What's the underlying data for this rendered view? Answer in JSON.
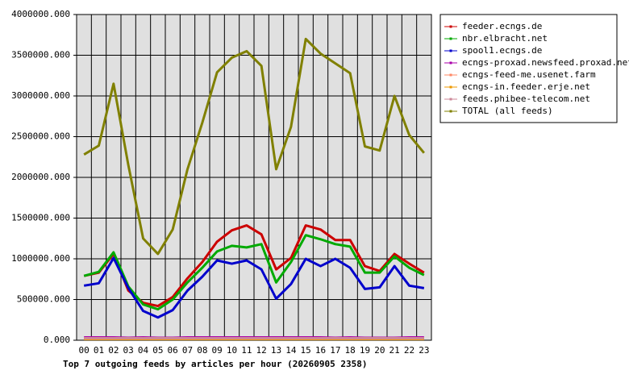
{
  "chart_data": {
    "type": "line",
    "title": "Top 7 outgoing feeds by articles per hour (20260905 2358)",
    "categories": [
      "00",
      "01",
      "02",
      "03",
      "04",
      "05",
      "06",
      "07",
      "08",
      "09",
      "10",
      "11",
      "12",
      "13",
      "14",
      "15",
      "16",
      "17",
      "18",
      "19",
      "20",
      "21",
      "22",
      "23"
    ],
    "ylim": [
      0,
      4000000
    ],
    "yticks": [
      {
        "value": 0,
        "label": "0.000"
      },
      {
        "value": 500000,
        "label": "500000.000"
      },
      {
        "value": 1000000,
        "label": "1000000.000"
      },
      {
        "value": 1500000,
        "label": "1500000.000"
      },
      {
        "value": 2000000,
        "label": "2000000.000"
      },
      {
        "value": 2500000,
        "label": "2500000.000"
      },
      {
        "value": 3000000,
        "label": "3000000.000"
      },
      {
        "value": 3500000,
        "label": "3500000.000"
      },
      {
        "value": 4000000,
        "label": "4000000.000"
      }
    ],
    "grid": true,
    "legend": "right",
    "series": [
      {
        "name": "feeder.ecngs.de",
        "color": "#cc0000",
        "values": [
          790000,
          830000,
          1060000,
          610000,
          460000,
          420000,
          530000,
          760000,
          960000,
          1210000,
          1350000,
          1410000,
          1300000,
          870000,
          1010000,
          1410000,
          1360000,
          1230000,
          1230000,
          910000,
          850000,
          1060000,
          940000,
          830000
        ]
      },
      {
        "name": "nbr.elbracht.net",
        "color": "#00aa00",
        "values": [
          790000,
          840000,
          1080000,
          660000,
          440000,
          380000,
          500000,
          710000,
          890000,
          1090000,
          1160000,
          1140000,
          1180000,
          710000,
          960000,
          1290000,
          1240000,
          1180000,
          1150000,
          830000,
          830000,
          1030000,
          890000,
          800000
        ]
      },
      {
        "name": "spool1.ecngs.de",
        "color": "#0000cc",
        "values": [
          670000,
          700000,
          1010000,
          640000,
          360000,
          280000,
          370000,
          610000,
          780000,
          980000,
          940000,
          980000,
          870000,
          510000,
          690000,
          1000000,
          910000,
          1000000,
          890000,
          630000,
          650000,
          910000,
          670000,
          640000
        ]
      },
      {
        "name": "ecngs-proxad.newsfeed.proxad.net",
        "color": "#aa00aa",
        "values": [
          35000,
          35000,
          35000,
          30000,
          35000,
          30000,
          30000,
          35000,
          35000,
          35000,
          35000,
          35000,
          35000,
          35000,
          35000,
          35000,
          35000,
          30000,
          35000,
          30000,
          30000,
          30000,
          35000,
          35000
        ]
      },
      {
        "name": "ecngs-feed-me.usenet.farm",
        "color": "#ff8866",
        "values": [
          20000,
          20000,
          20000,
          20000,
          20000,
          20000,
          20000,
          20000,
          20000,
          20000,
          20000,
          20000,
          20000,
          20000,
          20000,
          20000,
          20000,
          20000,
          20000,
          20000,
          20000,
          20000,
          20000,
          20000
        ]
      },
      {
        "name": "ecngs-in.feeder.erje.net",
        "color": "#ee9900",
        "values": [
          15000,
          15000,
          15000,
          15000,
          15000,
          15000,
          15000,
          15000,
          15000,
          15000,
          15000,
          15000,
          15000,
          15000,
          15000,
          15000,
          15000,
          15000,
          15000,
          15000,
          15000,
          15000,
          15000,
          15000
        ]
      },
      {
        "name": "feeds.phibee-telecom.net",
        "color": "#cc8899",
        "values": [
          25000,
          25000,
          25000,
          25000,
          25000,
          25000,
          25000,
          25000,
          25000,
          25000,
          25000,
          25000,
          25000,
          25000,
          25000,
          25000,
          25000,
          25000,
          25000,
          25000,
          25000,
          25000,
          25000,
          25000
        ]
      },
      {
        "name": "TOTAL (all feeds)",
        "color": "#808000",
        "values": [
          2280000,
          2390000,
          3150000,
          2150000,
          1250000,
          1060000,
          1360000,
          2100000,
          2670000,
          3290000,
          3470000,
          3550000,
          3370000,
          2100000,
          2620000,
          3700000,
          3520000,
          3400000,
          3280000,
          2380000,
          2330000,
          3000000,
          2520000,
          2300000
        ]
      }
    ]
  }
}
